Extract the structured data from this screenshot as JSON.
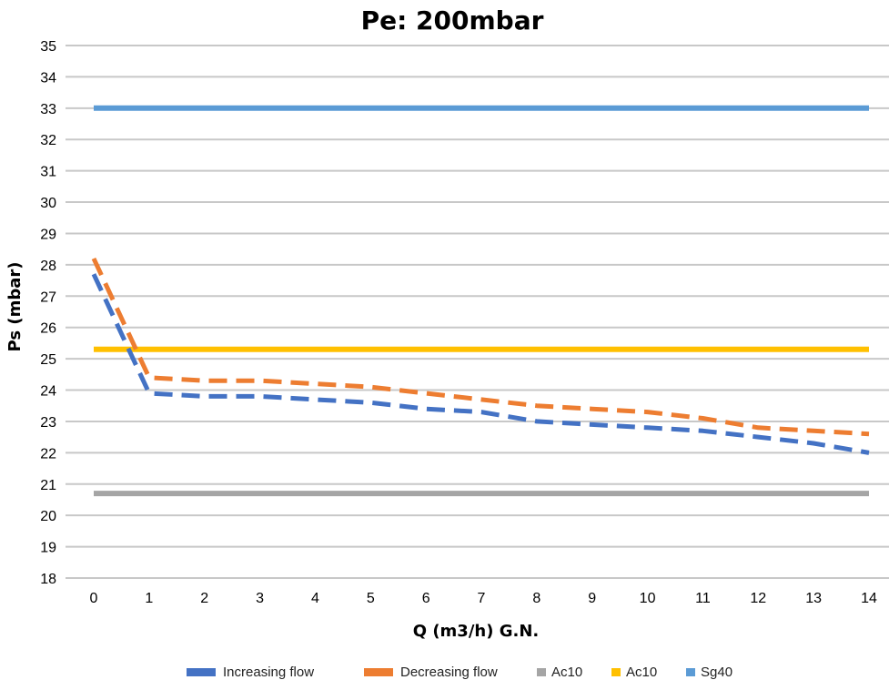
{
  "chart_data": {
    "type": "line",
    "title": "Pe: 200mbar",
    "xlabel": "Q (m3/h) G.N.",
    "ylabel": "Ps (mbar)",
    "x": [
      0,
      1,
      2,
      3,
      4,
      5,
      6,
      7,
      8,
      9,
      10,
      11,
      12,
      13,
      14
    ],
    "xlim": [
      0,
      14
    ],
    "ylim": [
      18,
      35
    ],
    "yticks": [
      18,
      19,
      20,
      21,
      22,
      23,
      24,
      25,
      26,
      27,
      28,
      29,
      30,
      31,
      32,
      33,
      34,
      35
    ],
    "grid": true,
    "legend_position": "bottom",
    "series": [
      {
        "name": "Increasing flow",
        "color": "#4472c4",
        "dashed": true,
        "values": [
          27.7,
          23.9,
          23.8,
          23.8,
          23.7,
          23.6,
          23.4,
          23.3,
          23.0,
          22.9,
          22.8,
          22.7,
          22.5,
          22.3,
          22.0
        ]
      },
      {
        "name": "Decreasing  flow",
        "color": "#ed7d31",
        "dashed": true,
        "values": [
          28.2,
          24.4,
          24.3,
          24.3,
          24.2,
          24.1,
          23.9,
          23.7,
          23.5,
          23.4,
          23.3,
          23.1,
          22.8,
          22.7,
          22.6
        ]
      },
      {
        "name": "Ac10",
        "color": "#a5a5a5",
        "dashed": false,
        "values": [
          20.7,
          20.7,
          20.7,
          20.7,
          20.7,
          20.7,
          20.7,
          20.7,
          20.7,
          20.7,
          20.7,
          20.7,
          20.7,
          20.7,
          20.7
        ]
      },
      {
        "name": "Ac10",
        "color": "#ffc000",
        "dashed": false,
        "values": [
          25.3,
          25.3,
          25.3,
          25.3,
          25.3,
          25.3,
          25.3,
          25.3,
          25.3,
          25.3,
          25.3,
          25.3,
          25.3,
          25.3,
          25.3
        ]
      },
      {
        "name": "Sg40",
        "color": "#5b9bd5",
        "dashed": false,
        "values": [
          33,
          33,
          33,
          33,
          33,
          33,
          33,
          33,
          33,
          33,
          33,
          33,
          33,
          33,
          33
        ]
      }
    ]
  }
}
